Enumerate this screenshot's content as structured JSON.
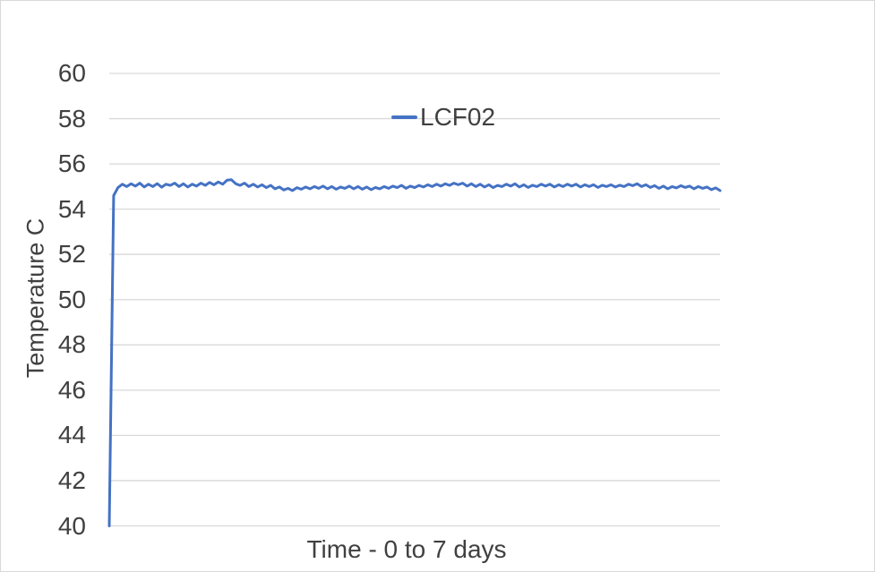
{
  "colors": {
    "line": "#4472C4",
    "grid": "#D9D9D9",
    "text": "#404040",
    "background": "#FFFFFF",
    "frame_border": "#D9D9D9"
  },
  "chart_data": {
    "type": "line",
    "title": "",
    "xlabel": "Time - 0 to 7 days",
    "ylabel": "Temperature C",
    "x_unit": "days",
    "xlim": [
      0,
      7
    ],
    "ylim": [
      40,
      60
    ],
    "yticks": [
      40,
      42,
      44,
      46,
      48,
      50,
      52,
      54,
      56,
      58,
      60
    ],
    "x_tick_labels_visible": false,
    "grid": "horizontal",
    "legend_position": "top-inside-center",
    "series": [
      {
        "name": "LCF02",
        "color": "#4472C4",
        "t0": 0,
        "dt": 0.05,
        "values": [
          40,
          54.6,
          54.95,
          55.1,
          55,
          55.12,
          55.02,
          55.15,
          54.98,
          55.1,
          55,
          55.13,
          54.97,
          55.1,
          55.05,
          55.15,
          55,
          55.12,
          54.98,
          55.1,
          55.02,
          55.15,
          55.05,
          55.18,
          55.08,
          55.2,
          55.1,
          55.28,
          55.3,
          55.12,
          55.05,
          55.15,
          55,
          55.1,
          54.98,
          55.08,
          54.95,
          55.05,
          54.9,
          54.98,
          54.85,
          54.92,
          54.82,
          54.95,
          54.88,
          54.98,
          54.9,
          55,
          54.92,
          55.02,
          54.9,
          55,
          54.88,
          54.98,
          54.92,
          55.02,
          54.9,
          55,
          54.88,
          54.98,
          54.86,
          54.96,
          54.9,
          55,
          54.92,
          55.02,
          54.95,
          55.05,
          54.92,
          55.02,
          54.95,
          55.05,
          54.98,
          55.08,
          55,
          55.1,
          55.02,
          55.12,
          55.05,
          55.15,
          55.08,
          55.15,
          55.02,
          55.12,
          55,
          55.1,
          54.98,
          55.08,
          54.95,
          55.05,
          55,
          55.1,
          55.02,
          55.12,
          54.98,
          55.08,
          54.96,
          55.06,
          55,
          55.1,
          55.02,
          55.1,
          54.98,
          55.08,
          55,
          55.1,
          55.02,
          55.1,
          54.98,
          55.08,
          55,
          55.08,
          54.96,
          55.06,
          55,
          55.08,
          54.98,
          55.06,
          55,
          55.1,
          55.04,
          55.12,
          55,
          55.08,
          54.96,
          55.04,
          54.92,
          55.02,
          54.9,
          55,
          54.94,
          55.04,
          54.96,
          55.02,
          54.9,
          55,
          54.92,
          54.98,
          54.86,
          54.94,
          54.82
        ]
      }
    ]
  }
}
